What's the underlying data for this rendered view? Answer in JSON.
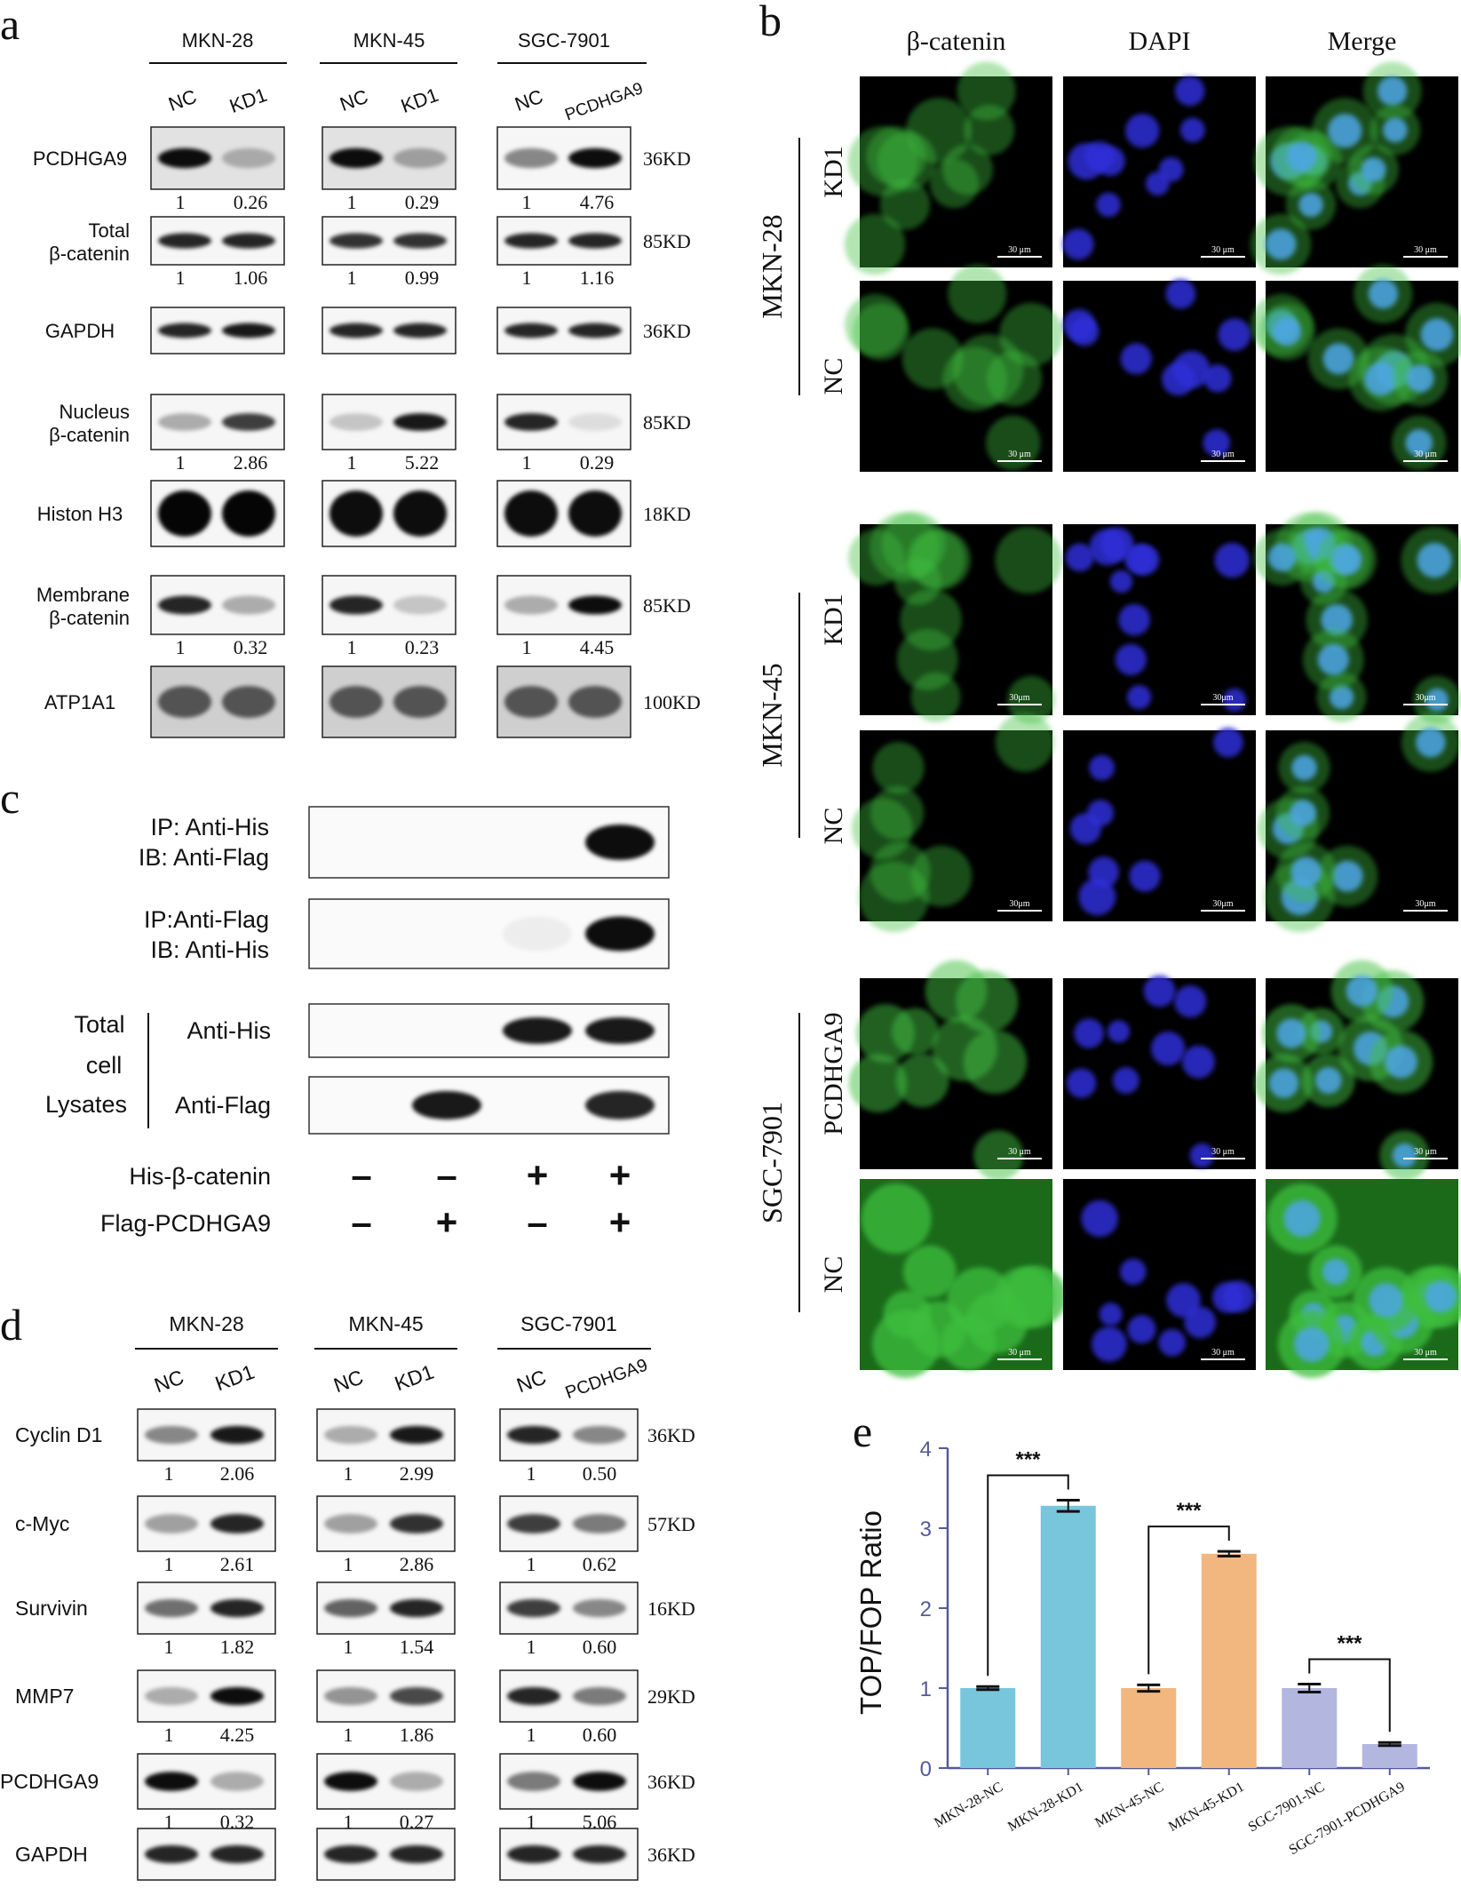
{
  "panels": {
    "a": {
      "letter": "a",
      "groups": [
        {
          "name": "MKN-28",
          "lanes": [
            "NC",
            "KD1"
          ]
        },
        {
          "name": "MKN-45",
          "lanes": [
            "NC",
            "KD1"
          ]
        },
        {
          "name": "SGC-7901",
          "lanes": [
            "NC",
            "PCDHGA9"
          ]
        }
      ],
      "rows": [
        {
          "label": [
            "PCDHGA9"
          ],
          "kd": "36KD",
          "values": [
            [
              "1",
              "0.26"
            ],
            [
              "1",
              "0.29"
            ],
            [
              "1",
              "4.76"
            ]
          ],
          "intensities": [
            [
              0.95,
              0.25
            ],
            [
              0.95,
              0.3
            ],
            [
              0.45,
              0.95
            ]
          ]
        },
        {
          "label": [
            "Total",
            "β-catenin"
          ],
          "kd": "85KD",
          "values": [
            [
              "1",
              "1.06"
            ],
            [
              "1",
              "0.99"
            ],
            [
              "1",
              "1.16"
            ]
          ],
          "intensities": [
            [
              0.85,
              0.85
            ],
            [
              0.8,
              0.8
            ],
            [
              0.85,
              0.85
            ]
          ]
        },
        {
          "label": [
            "GAPDH"
          ],
          "kd": "36KD",
          "values": [],
          "intensities": [
            [
              0.85,
              0.9
            ],
            [
              0.85,
              0.85
            ],
            [
              0.85,
              0.85
            ]
          ]
        },
        {
          "label": [
            "Nucleus",
            "β-catenin"
          ],
          "kd": "85KD",
          "values": [
            [
              "1",
              "2.86"
            ],
            [
              "1",
              "5.22"
            ],
            [
              "1",
              "0.29"
            ]
          ],
          "intensities": [
            [
              0.3,
              0.75
            ],
            [
              0.2,
              0.9
            ],
            [
              0.85,
              0.1
            ]
          ]
        },
        {
          "label": [
            "Histon H3"
          ],
          "kd": "18KD",
          "values": [],
          "intensities": [
            [
              0.98,
              0.98
            ],
            [
              0.95,
              0.95
            ],
            [
              0.95,
              0.95
            ]
          ]
        },
        {
          "label": [
            "Membrane",
            "β-catenin"
          ],
          "kd": "85KD",
          "values": [
            [
              "1",
              "0.32"
            ],
            [
              "1",
              "0.23"
            ],
            [
              "1",
              "4.45"
            ]
          ],
          "intensities": [
            [
              0.85,
              0.3
            ],
            [
              0.85,
              0.2
            ],
            [
              0.3,
              0.95
            ]
          ]
        },
        {
          "label": [
            "ATP1A1"
          ],
          "kd": "100KD",
          "values": [],
          "intensities": [
            [
              0.6,
              0.6
            ],
            [
              0.6,
              0.6
            ],
            [
              0.6,
              0.6
            ]
          ]
        }
      ]
    },
    "b": {
      "letter": "b",
      "columns": [
        "β-catenin",
        "DAPI",
        "Merge"
      ],
      "groups": [
        {
          "name": "MKN-28",
          "rows": [
            "KD1",
            "NC"
          ],
          "scalebar": "30 μm"
        },
        {
          "name": "MKN-45",
          "rows": [
            "KD1",
            "NC"
          ],
          "scalebar": "30μm"
        },
        {
          "name": "SGC-7901",
          "rows": [
            "PCDHGA9",
            "NC"
          ],
          "scalebar": "30 μm"
        }
      ]
    },
    "c": {
      "letter": "c",
      "rows": [
        {
          "label": [
            "IP: Anti-His",
            "IB: Anti-Flag"
          ],
          "intensities": [
            0,
            0,
            0,
            0.95
          ]
        },
        {
          "label": [
            "IP:Anti-Flag",
            "IB: Anti-His"
          ],
          "intensities": [
            0,
            0,
            0.05,
            0.95
          ]
        },
        {
          "label": [
            "Anti-His"
          ],
          "intensities": [
            0,
            0,
            0.9,
            0.9
          ]
        },
        {
          "label": [
            "Anti-Flag"
          ],
          "intensities": [
            0,
            0.9,
            0,
            0.85
          ]
        }
      ],
      "lysates_label": [
        "Total",
        "cell",
        "Lysates"
      ],
      "conditions": [
        {
          "name": "His-β-catenin",
          "signs": [
            "-",
            "-",
            "+",
            "+"
          ]
        },
        {
          "name": "Flag-PCDHGA9",
          "signs": [
            "-",
            "+",
            "-",
            "+"
          ]
        }
      ]
    },
    "d": {
      "letter": "d",
      "groups": [
        {
          "name": "MKN-28",
          "lanes": [
            "NC",
            "KD1"
          ]
        },
        {
          "name": "MKN-45",
          "lanes": [
            "NC",
            "KD1"
          ]
        },
        {
          "name": "SGC-7901",
          "lanes": [
            "NC",
            "PCDHGA9"
          ]
        }
      ],
      "rows": [
        {
          "label": "Cyclin D1",
          "kd": "36KD",
          "values": [
            [
              "1",
              "2.06"
            ],
            [
              "1",
              "2.99"
            ],
            [
              "1",
              "0.50"
            ]
          ],
          "intensities": [
            [
              0.45,
              0.9
            ],
            [
              0.3,
              0.9
            ],
            [
              0.85,
              0.45
            ]
          ]
        },
        {
          "label": "c-Myc",
          "kd": "57KD",
          "values": [
            [
              "1",
              "2.61"
            ],
            [
              "1",
              "2.86"
            ],
            [
              "1",
              "0.62"
            ]
          ],
          "intensities": [
            [
              0.35,
              0.85
            ],
            [
              0.35,
              0.8
            ],
            [
              0.75,
              0.5
            ]
          ]
        },
        {
          "label": "Survivin",
          "kd": "16KD",
          "values": [
            [
              "1",
              "1.82"
            ],
            [
              "1",
              "1.54"
            ],
            [
              "1",
              "0.60"
            ]
          ],
          "intensities": [
            [
              0.55,
              0.85
            ],
            [
              0.6,
              0.85
            ],
            [
              0.75,
              0.45
            ]
          ]
        },
        {
          "label": "MMP7",
          "kd": "29KD",
          "values": [
            [
              "1",
              "4.25"
            ],
            [
              "1",
              "1.86"
            ],
            [
              "1",
              "0.60"
            ]
          ],
          "intensities": [
            [
              0.3,
              0.95
            ],
            [
              0.4,
              0.7
            ],
            [
              0.85,
              0.5
            ]
          ]
        },
        {
          "label": "PCDHGA9",
          "kd": "36KD",
          "values": [
            [
              "1",
              "0.32"
            ],
            [
              "1",
              "0.27"
            ],
            [
              "1",
              "5.06"
            ]
          ],
          "intensities": [
            [
              0.95,
              0.3
            ],
            [
              0.95,
              0.3
            ],
            [
              0.5,
              0.95
            ]
          ]
        },
        {
          "label": "GAPDH",
          "kd": "36KD",
          "values": [],
          "intensities": [
            [
              0.85,
              0.85
            ],
            [
              0.85,
              0.85
            ],
            [
              0.85,
              0.85
            ]
          ]
        }
      ]
    },
    "e": {
      "letter": "e",
      "chart_data": {
        "type": "bar",
        "categories": [
          "MKN-28-NC",
          "MKN-28-KD1",
          "MKN-45-NC",
          "MKN-45-KD1",
          "SGC-7901-NC",
          "SGC-7901-PCDHGA9"
        ],
        "values": [
          1.0,
          3.28,
          1.0,
          2.68,
          1.0,
          0.3
        ],
        "errors": [
          0.02,
          0.07,
          0.04,
          0.03,
          0.05,
          0.02
        ],
        "colors": [
          "#78c6dc",
          "#78c6dc",
          "#f2b77f",
          "#f2b77f",
          "#b3b6df",
          "#b3b6df"
        ],
        "ylabel": "TOP/FOP Ratio",
        "ylim": [
          0,
          4
        ],
        "yticks": [
          "0",
          "1",
          "2",
          "3",
          "4"
        ],
        "significance": [
          {
            "from": 0,
            "to": 1,
            "label": "***"
          },
          {
            "from": 2,
            "to": 3,
            "label": "***"
          },
          {
            "from": 4,
            "to": 5,
            "label": "***"
          }
        ]
      }
    }
  }
}
